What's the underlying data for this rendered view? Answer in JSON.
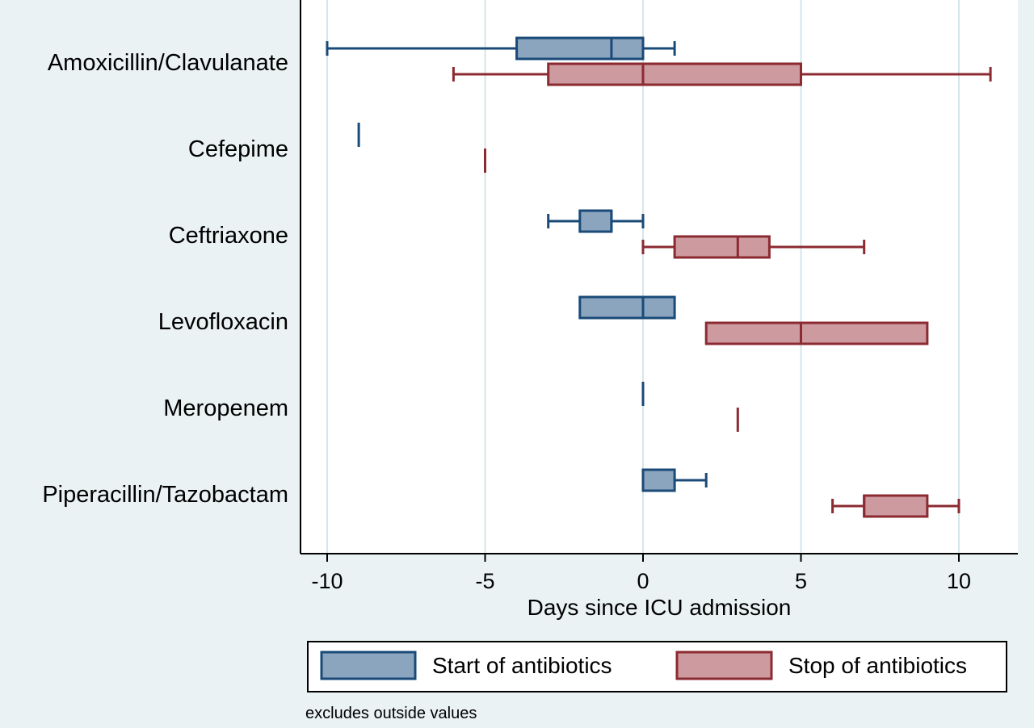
{
  "chart_data": {
    "type": "boxplot",
    "orientation": "horizontal",
    "xlabel": "Days since ICU admission",
    "xlim": [
      -11,
      12
    ],
    "xticks": [
      -10,
      -5,
      0,
      5,
      10
    ],
    "grid": "vertical",
    "categories": [
      "Amoxicillin/Clavulanate",
      "Cefepime",
      "Ceftriaxone",
      "Levofloxacin",
      "Meropenem",
      "Piperacillin/Tazobactam"
    ],
    "series": [
      {
        "name": "Start of antibiotics",
        "color": "#8ba5bf",
        "edge_color": "#1a4a78",
        "boxes": [
          {
            "whisker_low": -10,
            "q1": -4,
            "median": -1,
            "q3": 0,
            "whisker_high": 1
          },
          {
            "whisker_low": -9,
            "q1": -9,
            "median": -9,
            "q3": -9,
            "whisker_high": -9
          },
          {
            "whisker_low": -3,
            "q1": -2,
            "median": -1,
            "q3": -1,
            "whisker_high": 0
          },
          {
            "whisker_low": -2,
            "q1": -2,
            "median": 0,
            "q3": 1,
            "whisker_high": 1
          },
          {
            "whisker_low": 0,
            "q1": 0,
            "median": 0,
            "q3": 0,
            "whisker_high": 0
          },
          {
            "whisker_low": 0,
            "q1": 0,
            "median": 0,
            "q3": 1,
            "whisker_high": 2
          }
        ]
      },
      {
        "name": "Stop of antibiotics",
        "color": "#cc9a9f",
        "edge_color": "#8c2a32",
        "boxes": [
          {
            "whisker_low": -6,
            "q1": -3,
            "median": 0,
            "q3": 5,
            "whisker_high": 11
          },
          {
            "whisker_low": -5,
            "q1": -5,
            "median": -5,
            "q3": -5,
            "whisker_high": -5
          },
          {
            "whisker_low": 0,
            "q1": 1,
            "median": 3,
            "q3": 4,
            "whisker_high": 7
          },
          {
            "whisker_low": 2,
            "q1": 2,
            "median": 5,
            "q3": 9,
            "whisker_high": 9
          },
          {
            "whisker_low": 3,
            "q1": 3,
            "median": 3,
            "q3": 3,
            "whisker_high": 3
          },
          {
            "whisker_low": 6,
            "q1": 7,
            "median": 7,
            "q3": 9,
            "whisker_high": 10
          }
        ]
      }
    ],
    "legend": {
      "placement": "bottom"
    },
    "note": "excludes outside values"
  }
}
